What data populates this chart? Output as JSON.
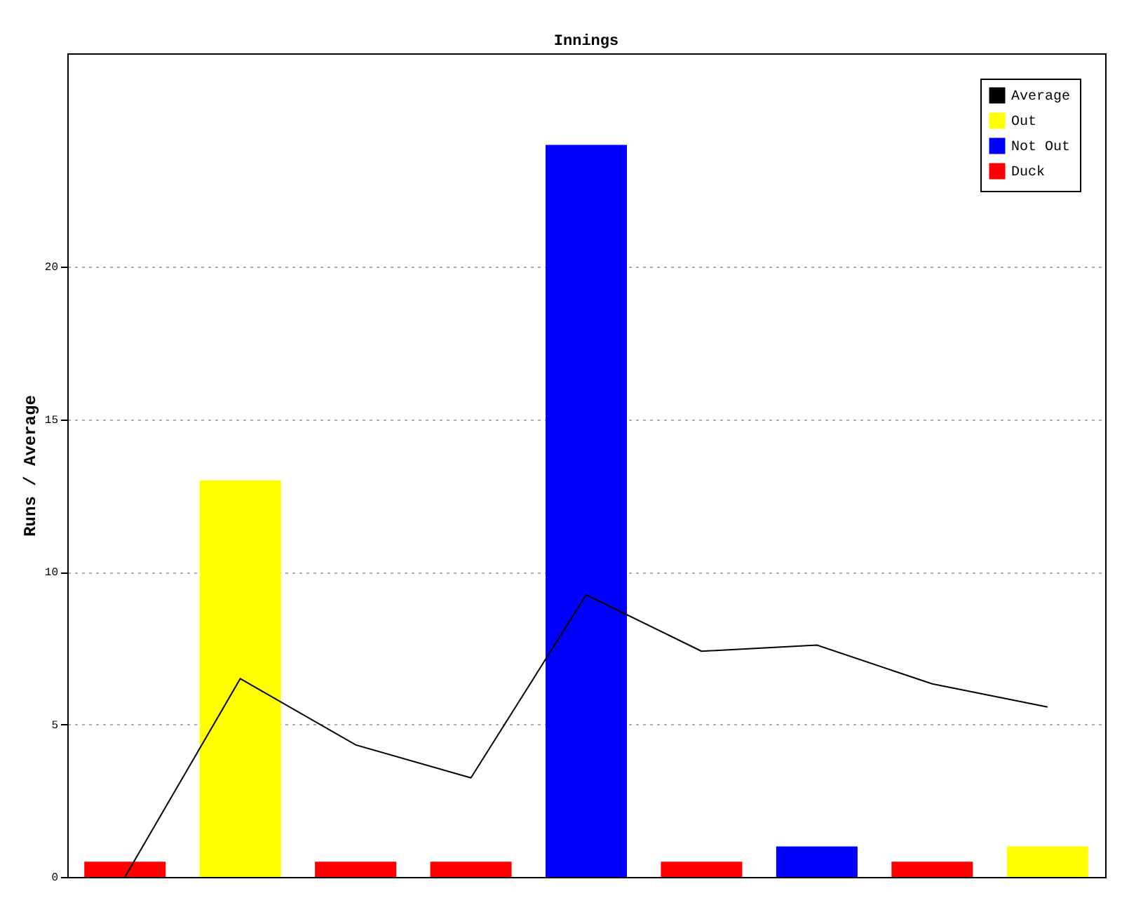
{
  "chart_data": {
    "type": "bar",
    "title": "Innings",
    "ylabel": "Runs / Average",
    "categories": [
      null,
      null,
      null,
      null,
      null,
      null,
      null,
      null,
      null
    ],
    "series": [
      {
        "name": "Average",
        "type": "line",
        "color": "#000000",
        "values": [
          0,
          6.5,
          4.33,
          3.25,
          9.25,
          7.4,
          7.6,
          6.33,
          5.57
        ]
      },
      {
        "name": "Out",
        "color": "#ffff00",
        "values": [
          null,
          13,
          null,
          null,
          null,
          null,
          null,
          null,
          1
        ]
      },
      {
        "name": "Not Out",
        "color": "#0000ff",
        "values": [
          null,
          null,
          null,
          null,
          24,
          null,
          1,
          null,
          null
        ]
      },
      {
        "name": "Duck",
        "color": "#ff0000",
        "values": [
          0.5,
          null,
          0.5,
          0.5,
          null,
          0.5,
          null,
          0.5,
          null
        ]
      }
    ],
    "ylim": [
      0,
      27
    ],
    "yticks": [
      0,
      5,
      10,
      15,
      20
    ],
    "grid": "y",
    "legend": "top right",
    "tick_labels": "y"
  }
}
